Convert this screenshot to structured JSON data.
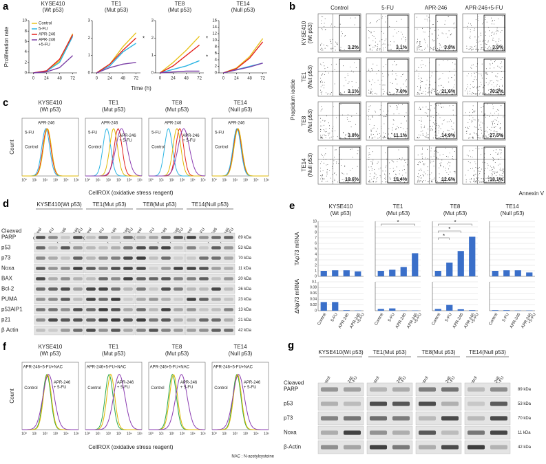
{
  "a": {
    "letter": "a",
    "ylabel": "Proliferation rate",
    "xlabel": "Time (h)",
    "x": [
      0,
      24,
      48,
      72
    ],
    "xlim": [
      -8,
      80
    ],
    "xticks": [
      0,
      24,
      48,
      72
    ],
    "series": [
      {
        "name": [
          "Control"
        ],
        "color": "#e8c31c"
      },
      {
        "name": [
          "5-FU"
        ],
        "color": "#2bb5e3"
      },
      {
        "name": [
          "APR-246"
        ],
        "color": "#e3211c"
      },
      {
        "name": [
          "APR-246",
          "+5-FU"
        ],
        "color": "#7b3fa6"
      }
    ],
    "charts": [
      {
        "title": [
          "KYSE410",
          "(Wt p53)"
        ],
        "ylim": [
          0,
          10
        ],
        "yticks": [
          0,
          2,
          4,
          6,
          8,
          10
        ],
        "values": [
          [
            0,
            0.3,
            2.3,
            7.5
          ],
          [
            0,
            0.3,
            2.0,
            7.0
          ],
          [
            0,
            0.4,
            2.6,
            7.3
          ],
          [
            0,
            0.2,
            1.0,
            3.3
          ]
        ]
      },
      {
        "title": [
          "TE1",
          "(Mut p53)"
        ],
        "ylim": [
          0,
          3
        ],
        "yticks": [
          0,
          1,
          2,
          3
        ],
        "values": [
          [
            0,
            0.5,
            1.5,
            2.3
          ],
          [
            0,
            0.4,
            1.2,
            1.7
          ],
          [
            0,
            0.5,
            1.3,
            2.0
          ],
          [
            0,
            0.3,
            0.5,
            0.6
          ]
        ],
        "annotations": [
          "*"
        ]
      },
      {
        "title": [
          "TE8",
          "(Mut p53)"
        ],
        "ylim": [
          0,
          3
        ],
        "yticks": [
          0,
          1,
          2,
          3
        ],
        "values": [
          [
            0,
            0.6,
            1.3,
            2.1
          ],
          [
            0,
            0.2,
            0.4,
            0.7
          ],
          [
            0,
            0.4,
            1.0,
            1.6
          ],
          [
            0,
            0.05,
            0.1,
            0.1
          ]
        ],
        "annotations": [
          "*",
          "*"
        ]
      },
      {
        "title": [
          "TE14",
          "(Null p53)"
        ],
        "ylim": [
          0,
          16
        ],
        "yticks": [
          0,
          2,
          4,
          6,
          8,
          10,
          12,
          14,
          16
        ],
        "values": [
          [
            0,
            1.5,
            5,
            10.5
          ],
          [
            0,
            1,
            2,
            3
          ],
          [
            0,
            1.3,
            4.5,
            9.5
          ],
          [
            0,
            0.9,
            1.8,
            3
          ]
        ]
      }
    ]
  },
  "b": {
    "letter": "b",
    "columns": [
      "Control",
      "5-FU",
      "APR-246",
      "APR-246+5-FU"
    ],
    "ylabel": "Propidium iodide",
    "xlabel": "Annexin V",
    "rows": [
      {
        "label": [
          "KYSE410",
          "(Wt p53)"
        ],
        "values": [
          "3.2%",
          "3.1%",
          "3.8%",
          "3.9%"
        ]
      },
      {
        "label": [
          "TE1",
          "(Mut p53)"
        ],
        "values": [
          "3.1%",
          "7.0%",
          "21.6%",
          "70.2%"
        ]
      },
      {
        "label": [
          "TE8",
          "(Mut p53)"
        ],
        "values": [
          "3.8%",
          "11.1%",
          "14.9%",
          "27.5%"
        ]
      },
      {
        "label": [
          "TE14",
          "(Null p53)"
        ],
        "values": [
          "10.6%",
          "15.4%",
          "12.6%",
          "18.1%"
        ]
      }
    ]
  },
  "c": {
    "letter": "c",
    "ylabel": "Count",
    "xlabel": "CellROX (oxidative stress reagent)",
    "xticks": [
      "10⁰",
      "10¹",
      "10²",
      "10³",
      "10⁴",
      "10⁵"
    ],
    "charts": [
      {
        "title": [
          "KYSE410",
          "(Wt p53)"
        ],
        "labels": [
          {
            "text": [
              "APR-246"
            ],
            "color": "#e3211c"
          },
          {
            "text": [
              "5-FU"
            ],
            "color": "#2bb5e3"
          },
          {
            "text": [
              "Control"
            ],
            "color": "#e0b800"
          }
        ]
      },
      {
        "title": [
          "TE1",
          "(Mut p53)"
        ],
        "labels": [
          {
            "text": [
              "APR-246"
            ],
            "color": "#e3211c"
          },
          {
            "text": [
              "5-FU"
            ],
            "color": "#2bb5e3"
          },
          {
            "text": [
              "Control"
            ],
            "color": "#e0b800"
          },
          {
            "text": [
              "APR-246",
              "+ 5-FU"
            ],
            "color": "#8a3ab0"
          }
        ]
      },
      {
        "title": [
          "TE8",
          "(Mut p53)"
        ],
        "labels": [
          {
            "text": [
              "APR-246"
            ],
            "color": "#e3211c"
          },
          {
            "text": [
              "5-FU"
            ],
            "color": "#2bb5e3"
          },
          {
            "text": [
              "Control"
            ],
            "color": "#e0b800"
          },
          {
            "text": [
              "APR-246",
              "+ 5-FU"
            ],
            "color": "#8a3ab0"
          }
        ]
      },
      {
        "title": [
          "TE14",
          "(Null p53)"
        ],
        "labels": [
          {
            "text": [
              "APR-246"
            ],
            "color": "#e3211c"
          },
          {
            "text": [
              "5-FU"
            ],
            "color": "#2bb5e3"
          },
          {
            "text": [
              "Control"
            ],
            "color": "#e0b800"
          }
        ]
      }
    ]
  },
  "d": {
    "letter": "d",
    "groups": [
      "KYSE410(Wt p53)",
      "TE1(Mut p53)",
      "TE8(Mut p53)",
      "TE14(Null p53)"
    ],
    "lanes": [
      [
        "Control"
      ],
      [
        "5-FU"
      ],
      [
        "APR-246"
      ],
      [
        "APR-246",
        "+5-FU"
      ]
    ],
    "rows": [
      {
        "label": [
          "Cleaved",
          "PARP"
        ],
        "size": "89 kDa"
      },
      {
        "label": [
          "p53"
        ],
        "size": "53 kDa"
      },
      {
        "label": [
          "p73"
        ],
        "size": "70 kDa"
      },
      {
        "label": [
          "Noxa"
        ],
        "size": "11 kDa"
      },
      {
        "label": [
          "BAX"
        ],
        "size": "20 kDa"
      },
      {
        "label": [
          "Bcl-2"
        ],
        "size": "26 kDa"
      },
      {
        "label": [
          "PUMA"
        ],
        "size": "23 kDa"
      },
      {
        "label": [
          "p53AIP1"
        ],
        "size": "13 kDa"
      },
      {
        "label": [
          "p21"
        ],
        "size": "21 kDa"
      },
      {
        "label": [
          "β Actin"
        ],
        "size": "42 kDa"
      }
    ]
  },
  "e": {
    "letter": "e",
    "color": "#3a6fc9",
    "titles": [
      [
        "KYSE410",
        "(Wt p53)"
      ],
      [
        "TE1",
        "(Mut p53)"
      ],
      [
        "TE8",
        "(Mut p53)"
      ],
      [
        "TE14",
        "(Null p53)"
      ]
    ],
    "categories": [
      [
        "Control"
      ],
      [
        "5-FU"
      ],
      [
        "APR-246"
      ],
      [
        "APR-246",
        "+5-FU"
      ]
    ],
    "rows": [
      {
        "ylabel": "TAp73 mRNA",
        "ylim": [
          0,
          10
        ],
        "yticks": [
          0,
          1,
          2,
          3,
          4,
          5,
          6,
          7,
          8,
          9,
          10
        ],
        "charts": [
          {
            "values": [
              1,
              1.1,
              1.1,
              0.9
            ],
            "annotations": []
          },
          {
            "values": [
              1,
              1.2,
              1.7,
              4.2
            ],
            "annotations": [
              "*"
            ]
          },
          {
            "values": [
              1,
              2.5,
              4.6,
              7.2
            ],
            "annotations": [
              "*",
              "*",
              "*"
            ]
          },
          {
            "values": [
              1,
              1.1,
              1.1,
              0.7
            ],
            "annotations": []
          }
        ]
      },
      {
        "ylabel": "ΔNp73 mRNA",
        "ylim": [
          0,
          0.1
        ],
        "yticks": [
          0,
          0.02,
          0.04,
          0.06,
          0.08,
          0.1
        ],
        "charts": [
          {
            "values": [
              0.03,
              0.03,
              0.002,
              0.001
            ],
            "annotations": []
          },
          {
            "values": [
              0.006,
              0.008,
              0.001,
              0.001
            ],
            "annotations": []
          },
          {
            "values": [
              0.006,
              0.02,
              0.005,
              0.002
            ],
            "annotations": []
          },
          {
            "values": [
              0.002,
              0.002,
              0.001,
              0.001
            ],
            "annotations": []
          }
        ]
      }
    ]
  },
  "f": {
    "letter": "f",
    "ylabel": "Count",
    "xlabel": "CellROX (oxidative stress reagent)",
    "note": "NAC : N-acetylcysteine",
    "xticks": [
      "10⁰",
      "10¹",
      "10²",
      "10³",
      "10⁴",
      "10⁵"
    ],
    "charts": [
      {
        "title": [
          "KYSE410",
          "(Wt p53)"
        ],
        "labels": [
          {
            "text": [
              "APR-246+5-FU+NAC"
            ],
            "color": "#2aa84a"
          },
          {
            "text": [
              "Control"
            ],
            "color": "#e0b800"
          },
          {
            "text": [
              "APR-246",
              "+ 5-FU"
            ],
            "color": "#8a3ab0"
          }
        ]
      },
      {
        "title": [
          "TE1",
          "(Mut p53)"
        ],
        "labels": [
          {
            "text": [
              "APR-246+5-FU+NAC"
            ],
            "color": "#2aa84a"
          },
          {
            "text": [
              "Control"
            ],
            "color": "#e0b800"
          },
          {
            "text": [
              "APR-246",
              "+ 5-FU"
            ],
            "color": "#8a3ab0"
          }
        ]
      },
      {
        "title": [
          "TE8",
          "(Mut p53)"
        ],
        "labels": [
          {
            "text": [
              "APR-246+5-FU+NAC"
            ],
            "color": "#2aa84a"
          },
          {
            "text": [
              "Control"
            ],
            "color": "#e0b800"
          },
          {
            "text": [
              "APR-246",
              "+ 5-FU"
            ],
            "color": "#8a3ab0"
          }
        ]
      },
      {
        "title": [
          "TE14",
          "(Null p53)"
        ],
        "labels": [
          {
            "text": [
              "APR-246+5-FU+NAC"
            ],
            "color": "#2aa84a"
          },
          {
            "text": [
              "Control"
            ],
            "color": "#e0b800"
          },
          {
            "text": [
              "APR-246",
              "+ 5-FU"
            ],
            "color": "#8a3ab0"
          }
        ]
      }
    ]
  },
  "g": {
    "letter": "g",
    "groups": [
      "KYSE410(Wt p53)",
      "TE1(Mut p53)",
      "TE8(Mut p53)",
      "TE14(Null p53)"
    ],
    "lanes": [
      [
        "Control"
      ],
      [
        "APR-246",
        "+5-FU"
      ]
    ],
    "rows": [
      {
        "label": [
          "Cleaved",
          "PARP"
        ],
        "size": "89 kDa"
      },
      {
        "label": [
          "p53"
        ],
        "size": "53 kDa"
      },
      {
        "label": [
          "p73"
        ],
        "size": "70 kDa"
      },
      {
        "label": [
          "Noxa"
        ],
        "size": "11 kDa"
      },
      {
        "label": [
          "β-Actin"
        ],
        "size": "42 kDa"
      }
    ]
  }
}
